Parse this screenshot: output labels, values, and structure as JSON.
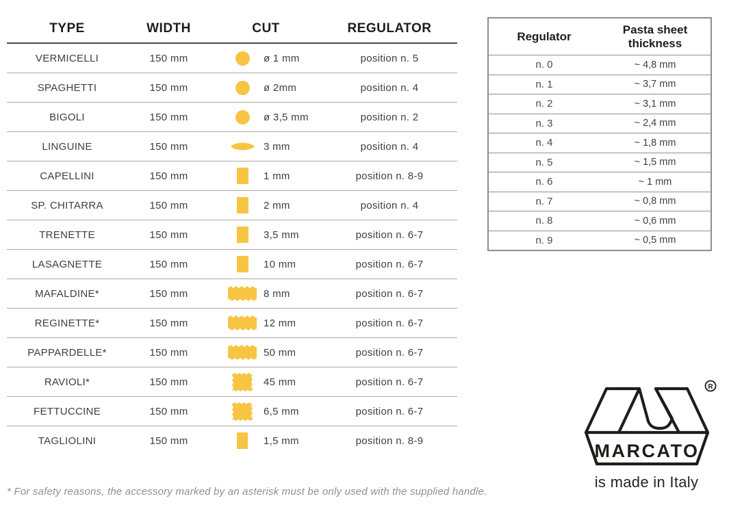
{
  "colors": {
    "pasta_yellow": "#F7C543",
    "ink": "#1d1d1b",
    "body_text": "#3e3e3c"
  },
  "pasta_table": {
    "headers": {
      "type": "TYPE",
      "width": "WIDTH",
      "cut": "CUT",
      "regulator": "REGULATOR"
    },
    "rows": [
      {
        "type": "VERMICELLI",
        "width": "150 mm",
        "cut": "ø 1 mm",
        "regulator": "position n. 5",
        "icon": "round-cut-icon"
      },
      {
        "type": "SPAGHETTI",
        "width": "150 mm",
        "cut": "ø 2mm",
        "regulator": "position n. 4",
        "icon": "round-cut-icon"
      },
      {
        "type": "BIGOLI",
        "width": "150 mm",
        "cut": "ø 3,5 mm",
        "regulator": "position n. 2",
        "icon": "round-cut-icon"
      },
      {
        "type": "LINGUINE",
        "width": "150 mm",
        "cut": "3 mm",
        "regulator": "position n. 4",
        "icon": "lens-cut-icon"
      },
      {
        "type": "CAPELLINI",
        "width": "150 mm",
        "cut": "1 mm",
        "regulator": "position n. 8-9",
        "icon": "square-cut-icon"
      },
      {
        "type": "SP. CHITARRA",
        "width": "150 mm",
        "cut": "2 mm",
        "regulator": "position n. 4",
        "icon": "square-cut-icon"
      },
      {
        "type": "TRENETTE",
        "width": "150 mm",
        "cut": "3,5 mm",
        "regulator": "position n. 6-7",
        "icon": "square-cut-icon"
      },
      {
        "type": "LASAGNETTE",
        "width": "150 mm",
        "cut": "10 mm",
        "regulator": "position n. 6-7",
        "icon": "square-cut-icon"
      },
      {
        "type": "MAFALDINE*",
        "width": "150 mm",
        "cut": "8 mm",
        "regulator": "position n. 6-7",
        "icon": "wavy-ribbon-cut-icon"
      },
      {
        "type": "REGINETTE*",
        "width": "150 mm",
        "cut": "12 mm",
        "regulator": "position n. 6-7",
        "icon": "wavy-ribbon-cut-icon"
      },
      {
        "type": "PAPPARDELLE*",
        "width": "150 mm",
        "cut": "50 mm",
        "regulator": "position n. 6-7",
        "icon": "wavy-ribbon-cut-icon"
      },
      {
        "type": "RAVIOLI*",
        "width": "150 mm",
        "cut": "45 mm",
        "regulator": "position n. 6-7",
        "icon": "zigzag-square-cut-icon"
      },
      {
        "type": "FETTUCCINE",
        "width": "150 mm",
        "cut": "6,5 mm",
        "regulator": "position n. 6-7",
        "icon": "zigzag-square-cut-icon"
      },
      {
        "type": "TAGLIOLINI",
        "width": "150 mm",
        "cut": "1,5 mm",
        "regulator": "position n. 8-9",
        "icon": "square-cut-icon"
      }
    ]
  },
  "regulator_table": {
    "headers": {
      "regulator": "Regulator",
      "thickness": "Pasta sheet thickness"
    },
    "rows": [
      {
        "regulator": "n. 0",
        "thickness": "~ 4,8 mm"
      },
      {
        "regulator": "n. 1",
        "thickness": "~ 3,7 mm"
      },
      {
        "regulator": "n. 2",
        "thickness": "~ 3,1 mm"
      },
      {
        "regulator": "n. 3",
        "thickness": "~ 2,4 mm"
      },
      {
        "regulator": "n. 4",
        "thickness": "~ 1,8 mm"
      },
      {
        "regulator": "n. 5",
        "thickness": "~ 1,5 mm"
      },
      {
        "regulator": "n. 6",
        "thickness": "~ 1 mm"
      },
      {
        "regulator": "n. 7",
        "thickness": "~ 0,8 mm"
      },
      {
        "regulator": "n. 8",
        "thickness": "~ 0,6 mm"
      },
      {
        "regulator": "n. 9",
        "thickness": "~ 0,5 mm"
      }
    ]
  },
  "footnote": "* For safety reasons, the accessory marked by an asterisk must be only used with the supplied handle.",
  "logo": {
    "brand": "MARCATO",
    "registered": "®",
    "tagline": "is made in Italy"
  }
}
